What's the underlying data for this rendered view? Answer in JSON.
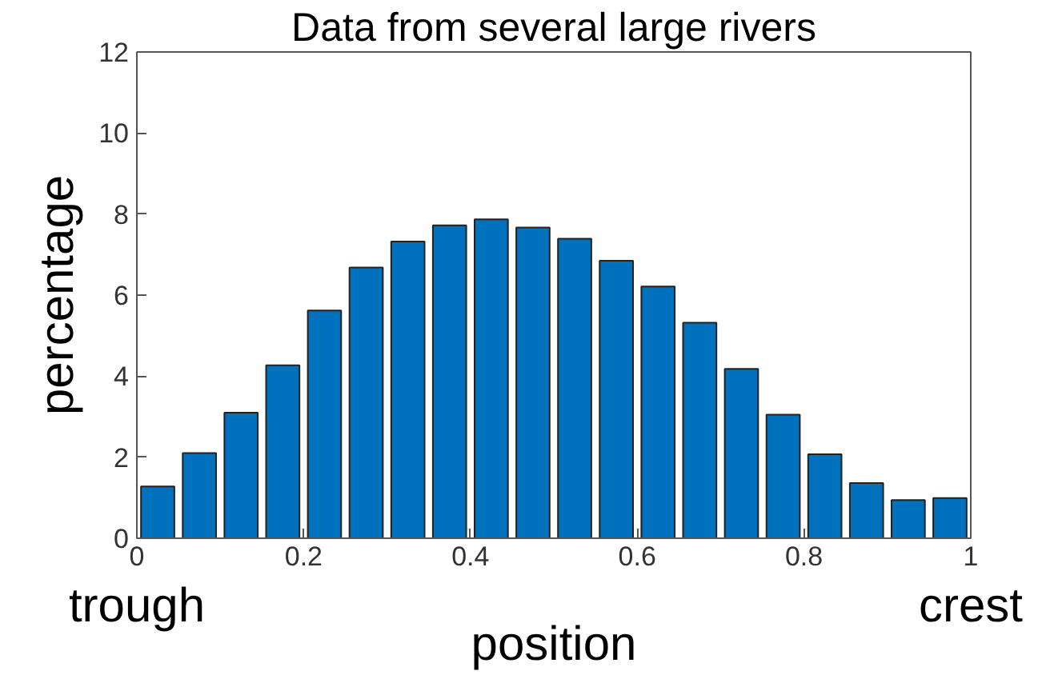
{
  "chart_data": {
    "type": "histogram",
    "title": "Data from several large rivers",
    "xlabel": "position",
    "ylabel": "percentage",
    "bins": [
      0,
      0.05,
      0.1,
      0.15,
      0.2,
      0.25,
      0.3,
      0.35,
      0.4,
      0.45,
      0.5,
      0.55,
      0.6,
      0.65,
      0.7,
      0.75,
      0.8,
      0.85,
      0.9,
      0.95,
      1
    ],
    "values": [
      1.28,
      2.1,
      3.1,
      4.27,
      5.62,
      6.68,
      7.32,
      7.72,
      7.87,
      7.67,
      7.39,
      6.85,
      6.21,
      5.32,
      4.18,
      3.05,
      2.07,
      1.36,
      0.94,
      0.99
    ],
    "color": "#0072bd",
    "xlim": [
      0,
      1
    ],
    "ylim": [
      0,
      12
    ],
    "xticks": [
      0,
      0.2,
      0.4,
      0.6,
      0.8,
      1
    ],
    "yticks": [
      0,
      2,
      4,
      6,
      8,
      10,
      12
    ],
    "annotations": [
      "trough",
      "crest"
    ],
    "grid": false
  }
}
